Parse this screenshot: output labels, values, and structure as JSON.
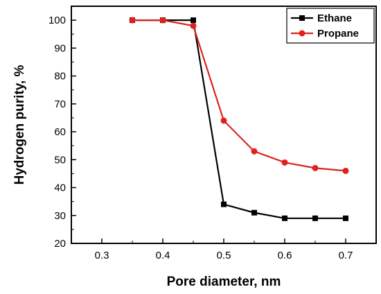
{
  "chart_data": {
    "type": "line",
    "xlabel": "Pore diameter, nm",
    "ylabel": "Hydrogen purity, %",
    "xlim": [
      0.25,
      0.75
    ],
    "ylim": [
      20,
      105
    ],
    "xticks": [
      "0.3",
      "0.4",
      "0.5",
      "0.6",
      "0.7"
    ],
    "yticks": [
      "20",
      "30",
      "40",
      "50",
      "60",
      "70",
      "80",
      "90",
      "100"
    ],
    "legend_position": "top-right",
    "grid": false,
    "series": [
      {
        "name": "Ethane",
        "color": "#000000",
        "marker": "square",
        "x": [
          0.35,
          0.4,
          0.45,
          0.5,
          0.55,
          0.6,
          0.65,
          0.7
        ],
        "y": [
          100,
          100,
          100,
          34,
          31,
          29,
          29,
          29
        ]
      },
      {
        "name": "Propane",
        "color": "#e0201c",
        "marker": "circle",
        "x": [
          0.35,
          0.4,
          0.45,
          0.5,
          0.55,
          0.6,
          0.65,
          0.7
        ],
        "y": [
          100,
          100,
          98,
          64,
          53,
          49,
          47,
          46
        ]
      }
    ]
  }
}
